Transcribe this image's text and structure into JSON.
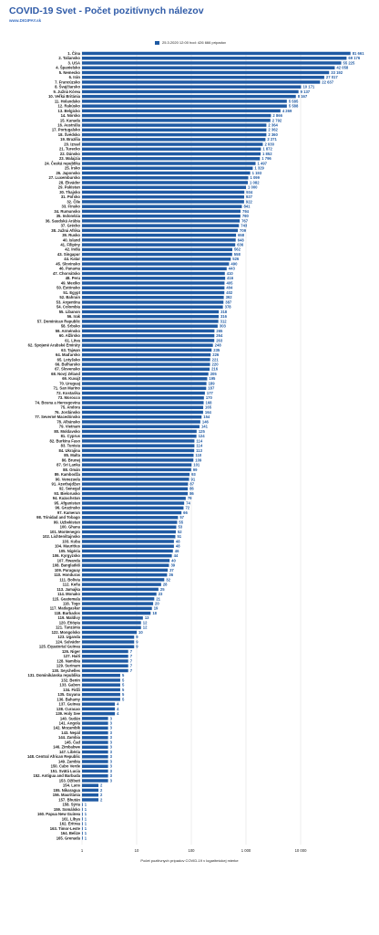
{
  "title": "COVID-19  Svet - Počet pozitívnych nálezov",
  "source": "www.DIGIPAY.sk",
  "legend": "25.3.2020 12:00 hod: 426 666 prípadov",
  "colors": {
    "bar": "#1f5aa3",
    "title": "#2e5aa7",
    "value_text": "#1f5aa3",
    "grid": "#cfcfcf"
  },
  "chart_data": {
    "type": "bar",
    "orientation": "horizontal",
    "x_scale": "log",
    "xlim": [
      1,
      100000
    ],
    "xticks": [
      1,
      10,
      100,
      1000,
      10000
    ],
    "xtick_labels": [
      "1",
      "10",
      "100",
      "1 000",
      "10 000"
    ],
    "xlabel": "Počet pozitívnych prípadov COVID-19  v logaritmickej mierke",
    "legend_position": "top",
    "categories": [
      "1. Čína",
      "2. Taliansko",
      "3. USA",
      "4. Španielsko",
      "5. Nemecko",
      "6. Irán",
      "7. Francúzsko",
      "8. Švajčiarsko",
      "9. Južná Kórea",
      "10. Veľká Británia",
      "11. Holandsko",
      "12. Rakúsko",
      "13. Belgicko",
      "14. Nórsko",
      "15. Kanada",
      "16. Austrália",
      "17. Portugalsko",
      "18. Švédsko",
      "19. Brazília",
      "20. Izrael",
      "21. Turecko",
      "22. Dánsko",
      "23. Malajzia",
      "24. Česká republika",
      "25. Írsko",
      "26. Japonsko",
      "27. Luxembursko",
      "28. Ekvádor",
      "29. Pakistan",
      "30. Thajsko",
      "31. Poľsko",
      "32. Čile",
      "33. Fínsko",
      "34. Rumunsko",
      "35. Indonézia",
      "36. Saudská Arábia",
      "37. Grécko",
      "38. Južná Afrika",
      "39. Rusko",
      "40. Island",
      "41. Filipíny",
      "42. India",
      "43. Singapur",
      "44. Katar",
      "45. Slovinsko",
      "46. Panama",
      "47. Chorvátsko",
      "48. Peru",
      "49. Mexiko",
      "50. Estónsko",
      "51. Egypt",
      "52. Bahrain",
      "53. Argentína",
      "54. Colombia",
      "55. Libanon",
      "56. Irak",
      "57. Dominican Republic",
      "58. Srbsko",
      "59. Arménsko",
      "60. Alžírsko",
      "61. Litva",
      "62. Spojené Arabské Emiráty",
      "63. Tajwan",
      "64. Maďarsko",
      "65. Lotyšsko",
      "66. Bulharsko",
      "67. Slovensko",
      "68. Nový Zéland",
      "69. Kuvajt",
      "70. Uruguaj",
      "71. San Marino",
      "72. Kostarika",
      "73. Morocco",
      "74. Bosna a Hercegovina",
      "75. Andora",
      "76. Jordánsko",
      "77. Severné Macedónsko",
      "78. Albánsko",
      "79. Vietnam",
      "80. Moldavsko",
      "81. Cyprus",
      "82. Burkina Faso",
      "83. Tunisia",
      "84. Ukrajina",
      "85. Malta",
      "86. Brunej",
      "87. Sri Lanka",
      "88. Omán",
      "89. Kambodža",
      "90. Venezuela",
      "91. Azerbajdžan",
      "92. Senegal",
      "93. Bielorusko",
      "94. Kazachstan",
      "95. Afganistan",
      "96. Gruzínsko",
      "97. Kamerun",
      "98. Trinidad and Tobago",
      "99. Uzbekistan",
      "100. Ghana",
      "101. Montenegro",
      "102. Lichtenštajnsko",
      "103. Kuba",
      "104. Mauritius",
      "105. Nigéria",
      "106. Kyrgyzsko",
      "107. Rwanda",
      "108. Bangladéš",
      "109. Paraguay",
      "110. Honduras",
      "111. Bolívia",
      "112. Keňa",
      "113. Jamajka",
      "114. Monako",
      "115. Guatemala",
      "116. Togo",
      "117. Madagaskar",
      "118. Barbados",
      "119. Maldivy",
      "120. Etiópia",
      "121. Tanzánia",
      "122. Mongolsko",
      "123. Uganda",
      "124. Salvádor",
      "125. Equatorial Guinea",
      "126. Niger",
      "127. Haiti",
      "128. Namíbia",
      "129. Surinam",
      "130. Seychelles",
      "131. Dominikánska republika",
      "132. Benin",
      "133. Gabon",
      "134. Fidži",
      "135. Guyana",
      "136. Bahamy",
      "137. Guinea",
      "138. Curacao",
      "139. Holy See",
      "140. Sudán",
      "141. Angola",
      "142. Mozambik",
      "143. Nepál",
      "144. Zambia",
      "145. Čad",
      "146. Zimbabwe",
      "147. Libéria",
      "148. Central African Republic",
      "149. Zambia",
      "150. Cabo Verde",
      "151. Svätá Lucia",
      "152. Antigua and Barbuda",
      "153. Džibuti",
      "154. Laos",
      "155. Nikaragua",
      "156. Mauritánia",
      "157. Bhután",
      "158. Sýria",
      "159. Somálsko",
      "160. Papua New Guinea",
      "161. Líbya",
      "162. Eritrea",
      "163. Timor-Leste",
      "164. Belize",
      "165. Grenada"
    ],
    "values": [
      81661,
      69176,
      55225,
      42058,
      33192,
      27017,
      22637,
      10171,
      9137,
      8167,
      5585,
      5588,
      4269,
      2866,
      2792,
      2364,
      2362,
      2360,
      2271,
      2030,
      1872,
      1852,
      1796,
      1497,
      1329,
      1193,
      1099,
      1082,
      1000,
      934,
      927,
      922,
      841,
      794,
      790,
      767,
      743,
      709,
      658,
      648,
      636,
      562,
      558,
      526,
      490,
      443,
      410,
      416,
      405,
      404,
      402,
      392,
      387,
      378,
      318,
      316,
      312,
      303,
      265,
      264,
      263,
      248,
      235,
      226,
      221,
      220,
      216,
      205,
      195,
      189,
      187,
      177,
      170,
      168,
      165,
      164,
      154,
      146,
      141,
      125,
      124,
      114,
      114,
      113,
      110,
      109,
      101,
      99,
      93,
      91,
      87,
      86,
      86,
      79,
      74,
      72,
      66,
      57,
      55,
      53,
      52,
      51,
      48,
      48,
      46,
      44,
      40,
      39,
      37,
      36,
      32,
      28,
      25,
      23,
      21,
      20,
      19,
      18,
      13,
      12,
      12,
      10,
      9,
      9,
      9,
      7,
      7,
      7,
      7,
      7,
      5,
      5,
      5,
      5,
      5,
      5,
      4,
      4,
      4,
      3,
      3,
      3,
      3,
      3,
      3,
      3,
      3,
      3,
      3,
      3,
      3,
      3,
      3,
      2,
      2,
      2,
      2,
      1,
      1,
      1,
      1,
      1,
      1,
      1,
      1
    ],
    "value_labels": [
      "81 661",
      "69 176",
      "55 225",
      "42 058",
      "33 192",
      "27 017",
      "22 637",
      "10 171",
      "9 137",
      "8 167",
      "5 585",
      "5 588",
      "4 269",
      "2 866",
      "2 792",
      "2 364",
      "2 362",
      "2 360",
      "2 271",
      "2 030",
      "1 872",
      "1 852",
      "1 796",
      "1 497",
      "1 329",
      "1 193",
      "1 099",
      "1 082",
      "1 000",
      "934",
      "927",
      "922",
      "841",
      "794",
      "790",
      "767",
      "743",
      "709",
      "658",
      "648",
      "636",
      "562",
      "558",
      "526",
      "490",
      "443",
      "410",
      "416",
      "405",
      "404",
      "402",
      "392",
      "387",
      "378",
      "318",
      "316",
      "312",
      "303",
      "265",
      "264",
      "263",
      "248",
      "235",
      "226",
      "221",
      "220",
      "216",
      "205",
      "195",
      "189",
      "187",
      "177",
      "170",
      "168",
      "165",
      "164",
      "154",
      "146",
      "141",
      "125",
      "124",
      "114",
      "114",
      "113",
      "110",
      "109",
      "101",
      "99",
      "93",
      "91",
      "87",
      "86",
      "86",
      "79",
      "74",
      "72",
      "66",
      "57",
      "55",
      "53",
      "52",
      "51",
      "48",
      "48",
      "46",
      "44",
      "40",
      "39",
      "37",
      "36",
      "32",
      "28",
      "25",
      "23",
      "21",
      "20",
      "19",
      "18",
      "13",
      "12",
      "12",
      "10",
      "9",
      "9",
      "9",
      "7",
      "7",
      "7",
      "7",
      "7",
      "5",
      "5",
      "5",
      "5",
      "5",
      "5",
      "4",
      "4",
      "4",
      "3",
      "3",
      "3",
      "3",
      "3",
      "3",
      "3",
      "3",
      "3",
      "3",
      "3",
      "3",
      "3",
      "3",
      "2",
      "2",
      "2",
      "2",
      "1",
      "1",
      "1",
      "1",
      "1",
      "1",
      "1",
      "1"
    ]
  }
}
